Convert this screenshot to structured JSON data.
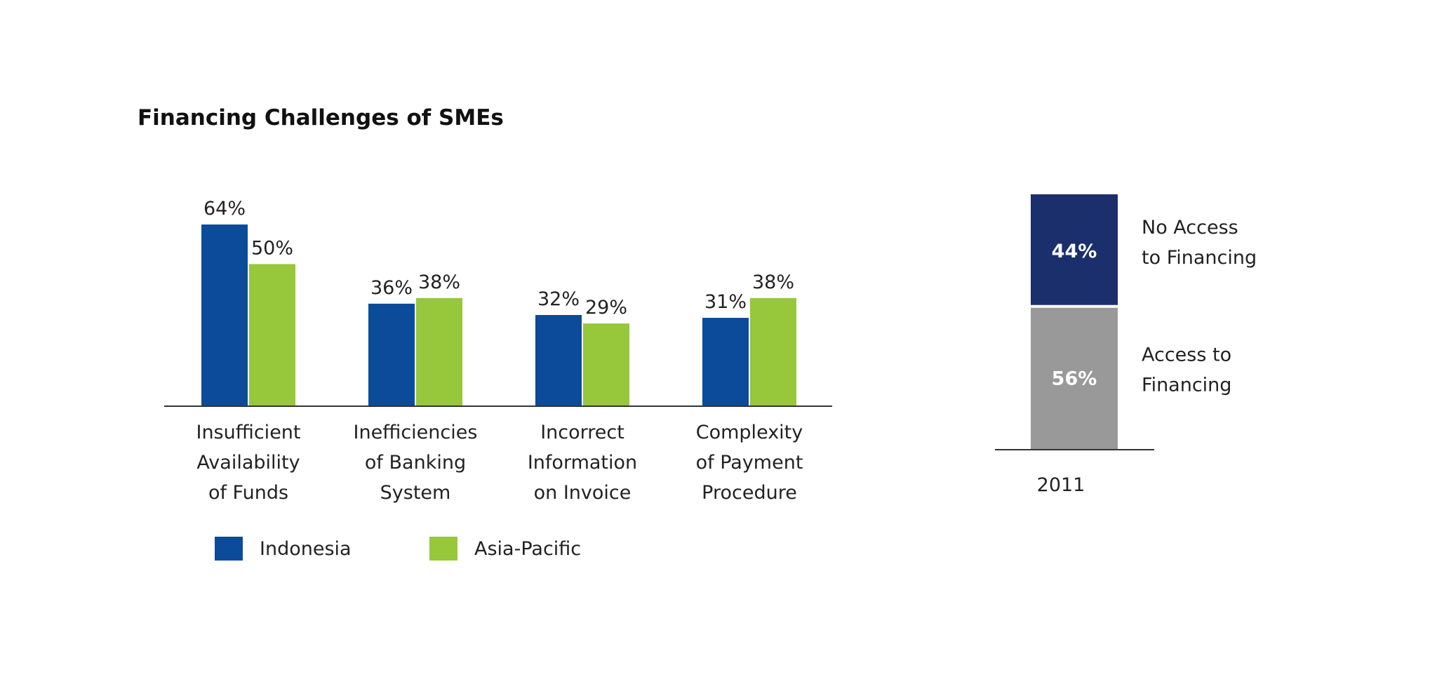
{
  "chart_data": [
    {
      "type": "bar",
      "title": "Financing Challenges of SMEs",
      "categories": [
        [
          "Insufficient",
          "Availability",
          "of Funds"
        ],
        [
          "Inefficiencies",
          "of Banking",
          "System"
        ],
        [
          "Incorrect",
          "Information",
          "on Invoice"
        ],
        [
          "Complexity",
          "of Payment",
          "Procedure"
        ]
      ],
      "series": [
        {
          "name": "Indonesia",
          "values": [
            64,
            36,
            32,
            31
          ],
          "labels": [
            "64%",
            "36%",
            "32%",
            "31%"
          ],
          "color": "#0b4b9a"
        },
        {
          "name": "Asia-Pacific",
          "values": [
            50,
            38,
            29,
            38
          ],
          "labels": [
            "50%",
            "38%",
            "29%",
            "38%"
          ],
          "color": "#97c73b"
        }
      ],
      "ylim": [
        0,
        64
      ],
      "grid": false,
      "legend_position": "bottom-left"
    },
    {
      "type": "bar",
      "stacked": true,
      "categories": [
        "2011"
      ],
      "series": [
        {
          "name": [
            "Access to",
            "Financing"
          ],
          "values": [
            56
          ],
          "labels": [
            "56%"
          ],
          "color": "#999999"
        },
        {
          "name": [
            "No Access",
            "to Financing"
          ],
          "values": [
            44
          ],
          "labels": [
            "44%"
          ],
          "color": "#1a2f6b"
        }
      ],
      "ylim": [
        0,
        100
      ],
      "grid": false,
      "legend_position": "right"
    }
  ]
}
